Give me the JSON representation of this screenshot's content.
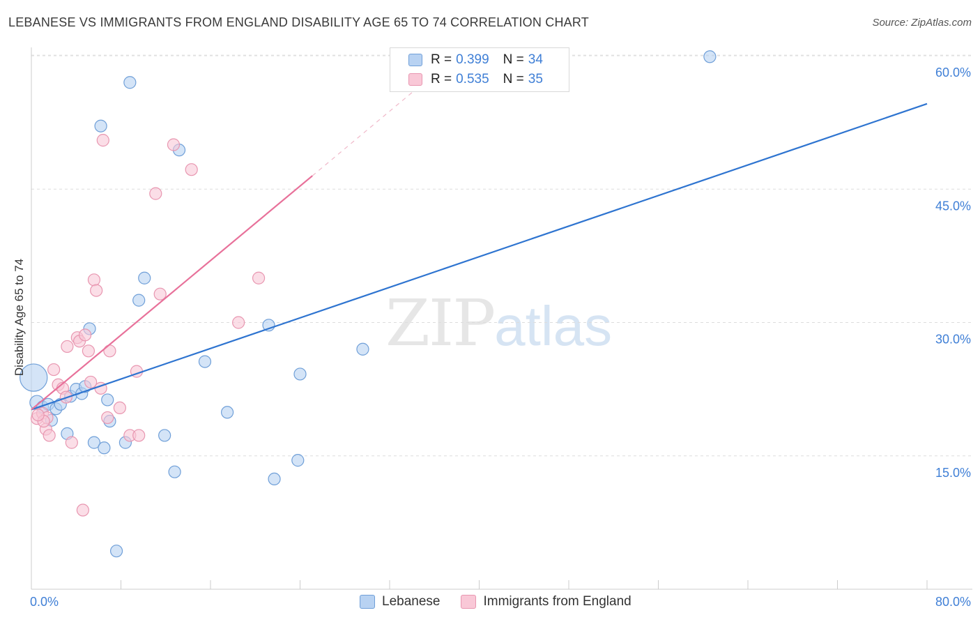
{
  "header": {
    "title": "LEBANESE VS IMMIGRANTS FROM ENGLAND DISABILITY AGE 65 TO 74 CORRELATION CHART",
    "source": "Source: ZipAtlas.com"
  },
  "watermark": {
    "zip": "ZIP",
    "atlas": "atlas"
  },
  "legend": {
    "rows": [
      {
        "r_label": "R =",
        "r_value": "0.399",
        "n_label": "N =",
        "n_value": "34"
      },
      {
        "r_label": "R =",
        "r_value": "0.535",
        "n_label": "N =",
        "n_value": "35"
      }
    ]
  },
  "chart_data": {
    "type": "scatter",
    "title": "LEBANESE VS IMMIGRANTS FROM ENGLAND DISABILITY AGE 65 TO 74 CORRELATION CHART",
    "xlabel": "",
    "ylabel": "Disability Age 65 to 74",
    "xlim": [
      0,
      80
    ],
    "ylim": [
      0,
      62
    ],
    "x_tick_labels": [
      "0.0%",
      "80.0%"
    ],
    "y_ticks": [
      15,
      30,
      45,
      60
    ],
    "y_tick_labels": [
      "15.0%",
      "30.0%",
      "45.0%",
      "60.0%"
    ],
    "grid": true,
    "colors": {
      "Lebanese": {
        "fill": "#b8d2f2",
        "stroke": "#6f9fd8",
        "line": "#2e74d0"
      },
      "Immigrants from England": {
        "fill": "#f9c8d7",
        "stroke": "#e896b0",
        "line": "#e8719a"
      }
    },
    "series": [
      {
        "name": "Lebanese",
        "points": [
          [
            0.5,
            21.0
          ],
          [
            1.0,
            20.5
          ],
          [
            1.5,
            20.8
          ],
          [
            1.8,
            19.0
          ],
          [
            2.2,
            20.3
          ],
          [
            2.6,
            20.8
          ],
          [
            3.2,
            17.5
          ],
          [
            3.5,
            21.7
          ],
          [
            4.0,
            22.5
          ],
          [
            4.5,
            22.0
          ],
          [
            4.8,
            22.8
          ],
          [
            5.2,
            29.3
          ],
          [
            5.6,
            16.5
          ],
          [
            6.2,
            52.1
          ],
          [
            6.5,
            15.9
          ],
          [
            6.8,
            21.3
          ],
          [
            7.0,
            18.9
          ],
          [
            7.6,
            4.3
          ],
          [
            8.4,
            16.5
          ],
          [
            8.8,
            57.0
          ],
          [
            9.6,
            32.5
          ],
          [
            10.1,
            35.0
          ],
          [
            11.9,
            17.3
          ],
          [
            12.8,
            13.2
          ],
          [
            13.2,
            49.4
          ],
          [
            15.5,
            25.6
          ],
          [
            17.5,
            19.9
          ],
          [
            21.2,
            29.7
          ],
          [
            21.7,
            12.4
          ],
          [
            23.8,
            14.5
          ],
          [
            24.0,
            24.2
          ],
          [
            29.6,
            27.0
          ],
          [
            60.6,
            59.9
          ],
          [
            0.2,
            23.8
          ]
        ],
        "sizes": [
          12,
          10,
          10,
          10,
          10,
          10,
          10,
          10,
          10,
          10,
          10,
          10,
          10,
          10,
          10,
          10,
          10,
          10,
          10,
          10,
          10,
          10,
          10,
          10,
          10,
          10,
          10,
          10,
          10,
          10,
          10,
          10,
          10,
          16
        ],
        "trendline": {
          "x": [
            0,
            80
          ],
          "y": [
            20.2,
            54.6
          ]
        }
      },
      {
        "name": "Immigrants from England",
        "points": [
          [
            0.5,
            19.2
          ],
          [
            1.0,
            19.8
          ],
          [
            1.3,
            18.0
          ],
          [
            1.6,
            17.3
          ],
          [
            2.0,
            24.7
          ],
          [
            2.4,
            23.0
          ],
          [
            2.8,
            22.6
          ],
          [
            3.1,
            21.6
          ],
          [
            3.2,
            27.3
          ],
          [
            3.6,
            16.5
          ],
          [
            4.1,
            28.3
          ],
          [
            4.3,
            27.9
          ],
          [
            4.6,
            8.9
          ],
          [
            4.8,
            28.6
          ],
          [
            5.1,
            26.8
          ],
          [
            5.3,
            23.3
          ],
          [
            5.6,
            34.8
          ],
          [
            5.8,
            33.6
          ],
          [
            6.2,
            22.6
          ],
          [
            6.4,
            50.5
          ],
          [
            6.8,
            19.3
          ],
          [
            7.0,
            26.8
          ],
          [
            7.9,
            20.4
          ],
          [
            8.8,
            17.3
          ],
          [
            9.4,
            24.5
          ],
          [
            9.6,
            17.3
          ],
          [
            11.1,
            44.5
          ],
          [
            11.5,
            33.2
          ],
          [
            12.7,
            50.0
          ],
          [
            14.3,
            47.2
          ],
          [
            18.5,
            30.0
          ],
          [
            20.3,
            35.0
          ],
          [
            1.4,
            19.3
          ],
          [
            1.1,
            18.9
          ],
          [
            0.6,
            19.6
          ]
        ],
        "sizes": [
          10,
          10,
          10,
          10,
          10,
          10,
          10,
          10,
          10,
          10,
          10,
          10,
          10,
          10,
          10,
          10,
          10,
          10,
          10,
          10,
          10,
          10,
          10,
          10,
          10,
          10,
          10,
          10,
          10,
          10,
          10,
          10,
          10,
          10,
          10
        ],
        "trendline": {
          "x": [
            0,
            25.1
          ],
          "y": [
            20.2,
            46.5
          ]
        },
        "trendline_extension": {
          "x": [
            25.1,
            34.6
          ],
          "y": [
            46.5,
            56.5
          ]
        }
      }
    ],
    "legend_position": "top-center"
  }
}
